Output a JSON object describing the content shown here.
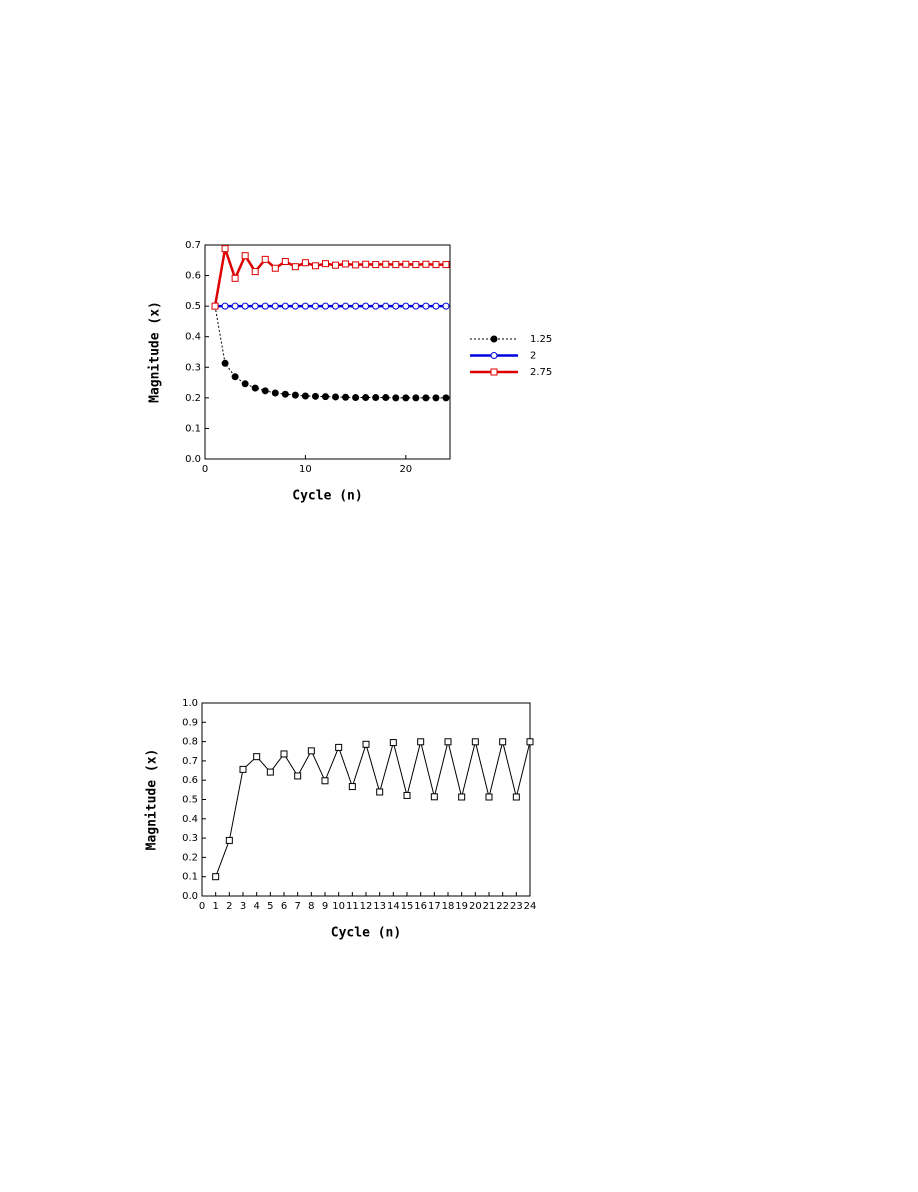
{
  "chart_data": [
    {
      "type": "line",
      "x_label": "Cycle (n)",
      "y_label": "Magnitude (x)",
      "x": [
        1,
        2,
        3,
        4,
        5,
        6,
        7,
        8,
        9,
        10,
        11,
        12,
        13,
        14,
        15,
        16,
        17,
        18,
        19,
        20,
        21,
        22,
        23,
        24
      ],
      "xlim": [
        0,
        24.4
      ],
      "xticks": [
        0,
        10,
        20
      ],
      "ylim": [
        0,
        0.7
      ],
      "yticks": [
        {
          "value": 0,
          "label": "0.0"
        },
        0.1,
        0.2,
        0.3,
        0.4,
        0.5,
        0.6,
        0.7
      ],
      "legend": "right",
      "series": [
        {
          "name": "1.25",
          "color": "#000000",
          "marker": "circle-filled",
          "dashed": true,
          "values": [
            0.5,
            0.313,
            0.269,
            0.246,
            0.232,
            0.223,
            0.216,
            0.212,
            0.209,
            0.206,
            0.205,
            0.204,
            0.203,
            0.202,
            0.201,
            0.201,
            0.201,
            0.201,
            0.2,
            0.2,
            0.2,
            0.2,
            0.2,
            0.2
          ]
        },
        {
          "name": "2",
          "color": "#0000dd",
          "marker": "circle-open",
          "dashed": false,
          "values": [
            0.5,
            0.5,
            0.5,
            0.5,
            0.5,
            0.5,
            0.5,
            0.5,
            0.5,
            0.5,
            0.5,
            0.5,
            0.5,
            0.5,
            0.5,
            0.5,
            0.5,
            0.5,
            0.5,
            0.5,
            0.5,
            0.5,
            0.5,
            0.5
          ]
        },
        {
          "name": "2.75",
          "color": "#dd0000",
          "marker": "square-open",
          "dashed": false,
          "values": [
            0.5,
            0.688,
            0.591,
            0.665,
            0.613,
            0.653,
            0.624,
            0.646,
            0.629,
            0.642,
            0.632,
            0.639,
            0.634,
            0.638,
            0.635,
            0.637,
            0.636,
            0.637,
            0.636,
            0.637,
            0.636,
            0.637,
            0.636,
            0.636
          ]
        }
      ]
    },
    {
      "type": "line",
      "x_label": "Cycle (n)",
      "y_label": "Magnitude (x)",
      "x": [
        1,
        2,
        3,
        4,
        5,
        6,
        7,
        8,
        9,
        10,
        11,
        12,
        13,
        14,
        15,
        16,
        17,
        18,
        19,
        20,
        21,
        22,
        23,
        24
      ],
      "xlim": [
        0,
        24
      ],
      "xticks": [
        0,
        1,
        2,
        3,
        4,
        5,
        6,
        7,
        8,
        9,
        10,
        11,
        12,
        13,
        14,
        15,
        16,
        17,
        18,
        19,
        20,
        21,
        22,
        23,
        24
      ],
      "ylim": [
        0,
        1
      ],
      "yticks": [
        {
          "value": 0,
          "label": "0.0"
        },
        0.1,
        0.2,
        0.3,
        0.4,
        0.5,
        0.6,
        0.7,
        0.8,
        0.9,
        {
          "value": 1,
          "label": "1.0"
        }
      ],
      "series": [
        {
          "color": "#000000",
          "marker": "square-open",
          "dashed": false,
          "values": [
            0.1,
            0.288,
            0.656,
            0.722,
            0.642,
            0.736,
            0.622,
            0.752,
            0.597,
            0.77,
            0.567,
            0.786,
            0.539,
            0.795,
            0.521,
            0.799,
            0.514,
            0.799,
            0.513,
            0.799,
            0.513,
            0.799,
            0.513,
            0.799
          ]
        }
      ]
    }
  ]
}
